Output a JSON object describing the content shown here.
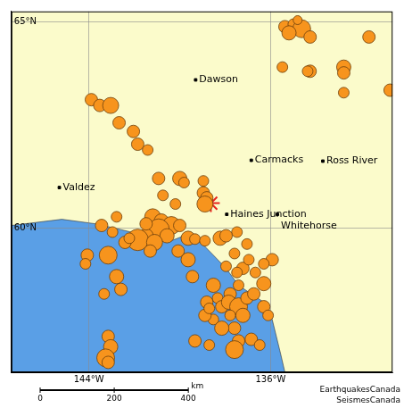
{
  "chart_data": {
    "type": "bubble",
    "xlim": [
      -147.41,
      -130.63
    ],
    "ylim": [
      56.5,
      65.25
    ],
    "xticks": [
      {
        "value": -144,
        "label": "144°W"
      },
      {
        "value": -136,
        "label": "136°W"
      }
    ],
    "yticks": [
      {
        "value": 60,
        "label": "60°N"
      },
      {
        "value": 65,
        "label": "65°N"
      }
    ],
    "grid": true,
    "ocean": {
      "color": "#5a9fe6",
      "lon": [
        -147.41,
        -145.19,
        -143.7,
        -142.59,
        -141.48,
        -140.56,
        -139.81,
        -139.07,
        -138.52,
        -137.96,
        -137.41,
        -136.85,
        -136.3,
        -135.93,
        -135.56,
        -135.37,
        -147.41
      ],
      "lat": [
        60.06,
        60.21,
        60.1,
        59.96,
        59.81,
        59.65,
        59.81,
        59.65,
        59.34,
        59.02,
        58.61,
        58.4,
        58.2,
        57.78,
        56.95,
        56.5,
        56.5
      ]
    },
    "earthquakes": {
      "color": "#f7941d",
      "marker": "circle",
      "points": [
        {
          "lon": -135.37,
          "lat": 64.88,
          "magnitude": 3.5
        },
        {
          "lon": -135.0,
          "lat": 64.94,
          "magnitude": 3
        },
        {
          "lon": -134.63,
          "lat": 64.83,
          "magnitude": 5
        },
        {
          "lon": -135.19,
          "lat": 64.73,
          "magnitude": 4
        },
        {
          "lon": -134.26,
          "lat": 64.63,
          "magnitude": 3.5
        },
        {
          "lon": -134.81,
          "lat": 65.04,
          "magnitude": 2.5
        },
        {
          "lon": -131.67,
          "lat": 64.63,
          "magnitude": 3.5
        },
        {
          "lon": -134.26,
          "lat": 63.8,
          "magnitude": 3.5
        },
        {
          "lon": -132.78,
          "lat": 63.9,
          "magnitude": 4
        },
        {
          "lon": -132.78,
          "lat": 63.76,
          "magnitude": 3.5
        },
        {
          "lon": -134.37,
          "lat": 63.8,
          "magnitude": 3
        },
        {
          "lon": -130.74,
          "lat": 63.34,
          "magnitude": 3.5
        },
        {
          "lon": -132.78,
          "lat": 63.28,
          "magnitude": 3
        },
        {
          "lon": -135.48,
          "lat": 63.9,
          "magnitude": 3
        },
        {
          "lon": -143.89,
          "lat": 63.11,
          "magnitude": 3.5
        },
        {
          "lon": -143.52,
          "lat": 62.97,
          "magnitude": 3.5
        },
        {
          "lon": -143.04,
          "lat": 62.97,
          "magnitude": 4.5
        },
        {
          "lon": -142.67,
          "lat": 62.55,
          "magnitude": 3.5
        },
        {
          "lon": -142.04,
          "lat": 62.34,
          "magnitude": 3.5
        },
        {
          "lon": -141.85,
          "lat": 62.03,
          "magnitude": 3.5
        },
        {
          "lon": -141.41,
          "lat": 61.89,
          "magnitude": 3
        },
        {
          "lon": -140.93,
          "lat": 61.2,
          "magnitude": 3.5
        },
        {
          "lon": -140.0,
          "lat": 61.2,
          "magnitude": 4
        },
        {
          "lon": -139.81,
          "lat": 61.1,
          "magnitude": 3
        },
        {
          "lon": -138.96,
          "lat": 61.14,
          "magnitude": 3
        },
        {
          "lon": -138.96,
          "lat": 60.85,
          "magnitude": 3.5
        },
        {
          "lon": -138.81,
          "lat": 60.73,
          "magnitude": 3.5
        },
        {
          "lon": -140.19,
          "lat": 60.58,
          "magnitude": 3
        },
        {
          "lon": -140.74,
          "lat": 60.79,
          "magnitude": 3
        },
        {
          "lon": -138.89,
          "lat": 60.58,
          "magnitude": 4.5
        },
        {
          "lon": -141.19,
          "lat": 60.27,
          "magnitude": 4.5
        },
        {
          "lon": -140.81,
          "lat": 60.17,
          "magnitude": 4
        },
        {
          "lon": -140.37,
          "lat": 60.06,
          "magnitude": 5
        },
        {
          "lon": -140.0,
          "lat": 60.06,
          "magnitude": 3.5
        },
        {
          "lon": -140.93,
          "lat": 59.96,
          "magnitude": 6
        },
        {
          "lon": -140.56,
          "lat": 59.81,
          "magnitude": 4
        },
        {
          "lon": -141.48,
          "lat": 59.81,
          "magnitude": 4
        },
        {
          "lon": -141.85,
          "lat": 59.71,
          "magnitude": 6
        },
        {
          "lon": -141.11,
          "lat": 59.65,
          "magnitude": 4.5
        },
        {
          "lon": -141.3,
          "lat": 59.44,
          "magnitude": 3.5
        },
        {
          "lon": -139.63,
          "lat": 59.75,
          "magnitude": 4
        },
        {
          "lon": -139.33,
          "lat": 59.73,
          "magnitude": 3
        },
        {
          "lon": -138.89,
          "lat": 59.69,
          "magnitude": 3
        },
        {
          "lon": -138.22,
          "lat": 59.75,
          "magnitude": 4
        },
        {
          "lon": -137.48,
          "lat": 59.9,
          "magnitude": 3
        },
        {
          "lon": -137.96,
          "lat": 59.81,
          "magnitude": 3.5
        },
        {
          "lon": -143.44,
          "lat": 60.06,
          "magnitude": 3.5
        },
        {
          "lon": -140.07,
          "lat": 59.44,
          "magnitude": 3.5
        },
        {
          "lon": -139.63,
          "lat": 59.23,
          "magnitude": 4
        },
        {
          "lon": -142.96,
          "lat": 59.9,
          "magnitude": 3
        },
        {
          "lon": -142.41,
          "lat": 59.65,
          "magnitude": 3.5
        },
        {
          "lon": -144.07,
          "lat": 59.34,
          "magnitude": 3.5
        },
        {
          "lon": -144.15,
          "lat": 59.13,
          "magnitude": 3
        },
        {
          "lon": -143.15,
          "lat": 59.34,
          "magnitude": 5
        },
        {
          "lon": -142.78,
          "lat": 58.82,
          "magnitude": 4
        },
        {
          "lon": -143.33,
          "lat": 58.4,
          "magnitude": 3
        },
        {
          "lon": -142.59,
          "lat": 58.51,
          "magnitude": 3.5
        },
        {
          "lon": -139.44,
          "lat": 58.82,
          "magnitude": 3.5
        },
        {
          "lon": -138.52,
          "lat": 58.61,
          "magnitude": 4
        },
        {
          "lon": -138.33,
          "lat": 58.3,
          "magnitude": 3
        },
        {
          "lon": -138.81,
          "lat": 58.2,
          "magnitude": 3.5
        },
        {
          "lon": -138.15,
          "lat": 58.09,
          "magnitude": 3.5
        },
        {
          "lon": -137.78,
          "lat": 58.4,
          "magnitude": 3.5
        },
        {
          "lon": -137.85,
          "lat": 58.2,
          "magnitude": 4
        },
        {
          "lon": -137.41,
          "lat": 58.09,
          "magnitude": 5
        },
        {
          "lon": -137.04,
          "lat": 58.3,
          "magnitude": 3.5
        },
        {
          "lon": -137.22,
          "lat": 57.88,
          "magnitude": 4
        },
        {
          "lon": -137.78,
          "lat": 57.88,
          "magnitude": 3
        },
        {
          "lon": -137.59,
          "lat": 57.57,
          "magnitude": 3.5
        },
        {
          "lon": -136.74,
          "lat": 58.4,
          "magnitude": 3.5
        },
        {
          "lon": -136.3,
          "lat": 58.65,
          "magnitude": 4
        },
        {
          "lon": -135.93,
          "lat": 59.23,
          "magnitude": 3.5
        },
        {
          "lon": -136.67,
          "lat": 58.92,
          "magnitude": 3
        },
        {
          "lon": -137.22,
          "lat": 59.02,
          "magnitude": 3.5
        },
        {
          "lon": -137.59,
          "lat": 59.38,
          "magnitude": 3
        },
        {
          "lon": -137.04,
          "lat": 59.61,
          "magnitude": 3
        },
        {
          "lon": -138.52,
          "lat": 57.78,
          "magnitude": 3
        },
        {
          "lon": -138.15,
          "lat": 57.57,
          "magnitude": 4
        },
        {
          "lon": -137.41,
          "lat": 57.26,
          "magnitude": 3.5
        },
        {
          "lon": -137.59,
          "lat": 57.05,
          "magnitude": 5
        },
        {
          "lon": -136.85,
          "lat": 57.3,
          "magnitude": 3.5
        },
        {
          "lon": -136.48,
          "lat": 57.16,
          "magnitude": 3
        },
        {
          "lon": -139.33,
          "lat": 57.26,
          "magnitude": 3.5
        },
        {
          "lon": -138.7,
          "lat": 57.16,
          "magnitude": 3
        },
        {
          "lon": -143.15,
          "lat": 57.37,
          "magnitude": 3.5
        },
        {
          "lon": -143.04,
          "lat": 57.12,
          "magnitude": 4
        },
        {
          "lon": -143.26,
          "lat": 56.85,
          "magnitude": 5
        },
        {
          "lon": -143.15,
          "lat": 56.74,
          "magnitude": 3.5
        },
        {
          "lon": -138.89,
          "lat": 57.88,
          "magnitude": 3.5
        },
        {
          "lon": -136.3,
          "lat": 58.09,
          "magnitude": 3.5
        },
        {
          "lon": -136.11,
          "lat": 57.88,
          "magnitude": 3
        },
        {
          "lon": -136.96,
          "lat": 59.23,
          "magnitude": 3
        },
        {
          "lon": -136.3,
          "lat": 59.13,
          "magnitude": 3
        },
        {
          "lon": -137.41,
          "lat": 58.61,
          "magnitude": 3
        },
        {
          "lon": -138.7,
          "lat": 58.05,
          "magnitude": 3
        },
        {
          "lon": -137.96,
          "lat": 59.07,
          "magnitude": 3
        },
        {
          "lon": -137.48,
          "lat": 58.92,
          "magnitude": 3
        },
        {
          "lon": -142.78,
          "lat": 60.27,
          "magnitude": 3
        },
        {
          "lon": -141.48,
          "lat": 60.1,
          "magnitude": 3.5
        },
        {
          "lon": -142.22,
          "lat": 59.75,
          "magnitude": 3
        }
      ]
    },
    "epicenter": {
      "lon": -138.63,
      "lat": 60.6,
      "color": "#e8231e",
      "marker": "star"
    },
    "places": [
      {
        "label": "Dawson",
        "lon": -139.3,
        "lat": 63.59
      },
      {
        "label": "Carmacks",
        "lon": -136.85,
        "lat": 61.64
      },
      {
        "label": "Ross River",
        "lon": -133.7,
        "lat": 61.62
      },
      {
        "label": "Valdez",
        "lon": -145.3,
        "lat": 60.98
      },
      {
        "label": "Haines Junction",
        "lon": -137.93,
        "lat": 60.33
      },
      {
        "label": "Whitehorse",
        "lon": -135.7,
        "lat": 60.33
      }
    ],
    "scale_bar": {
      "ticks": [
        0,
        200,
        400
      ],
      "unit": "km"
    },
    "credit": [
      "EarthquakesCanada",
      "SeismesCanada"
    ]
  }
}
